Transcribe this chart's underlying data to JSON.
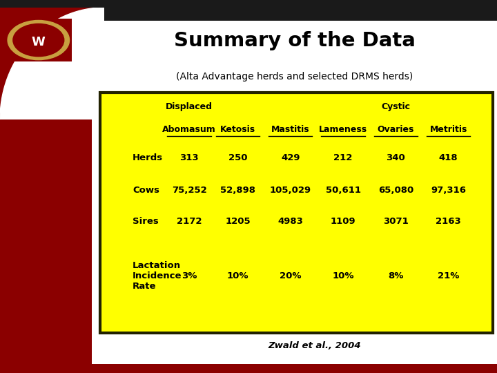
{
  "title": "Summary of the Data",
  "subtitle": "(Alta Advantage herds and selected DRMS herds)",
  "citation": "Zwald et al., 2004",
  "col_headers": [
    "Displaced\nAbomasum",
    "Ketosis",
    "Mastitis",
    "Lameness",
    "Cystic\nOvaries",
    "Metritis"
  ],
  "row_headers": [
    "Herds",
    "Cows",
    "Sires",
    "Lactation\nIncidence\nRate"
  ],
  "data": [
    [
      "313",
      "250",
      "429",
      "212",
      "340",
      "418"
    ],
    [
      "75,252",
      "52,898",
      "105,029",
      "50,611",
      "65,080",
      "97,316"
    ],
    [
      "2172",
      "1205",
      "4983",
      "1109",
      "3071",
      "2163"
    ],
    [
      "3%",
      "10%",
      "20%",
      "10%",
      "8%",
      "21%"
    ]
  ],
  "bg_color": "#FFFF00",
  "border_color": "#222200",
  "slide_bg_left": "#8B0000",
  "title_color": "#000000",
  "text_color": "#000000",
  "top_bar_color": "#1a1a1a"
}
